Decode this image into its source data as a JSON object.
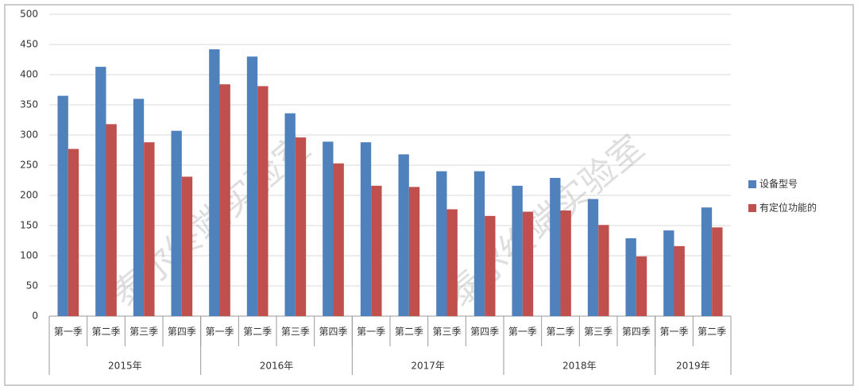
{
  "chart_data": {
    "type": "bar",
    "groups": [
      {
        "name": "2015年",
        "categories": [
          "第一季",
          "第二季",
          "第三季",
          "第四季"
        ]
      },
      {
        "name": "2016年",
        "categories": [
          "第一季",
          "第二季",
          "第三季",
          "第四季"
        ]
      },
      {
        "name": "2017年",
        "categories": [
          "第一季",
          "第二季",
          "第三季",
          "第四季"
        ]
      },
      {
        "name": "2018年",
        "categories": [
          "第一季",
          "第二季",
          "第三季",
          "第四季"
        ]
      },
      {
        "name": "2019年",
        "categories": [
          "第一季",
          "第二季"
        ]
      }
    ],
    "series": [
      {
        "name": "设备型号",
        "color": "#4f81bd",
        "values": [
          365,
          413,
          360,
          307,
          442,
          430,
          336,
          289,
          288,
          268,
          240,
          240,
          216,
          229,
          194,
          129,
          142,
          180
        ]
      },
      {
        "name": "有定位功能的",
        "color": "#c0504d",
        "values": [
          277,
          318,
          288,
          231,
          384,
          381,
          296,
          253,
          216,
          214,
          177,
          166,
          173,
          175,
          151,
          99,
          116,
          147
        ]
      }
    ],
    "ylim": [
      0,
      500
    ],
    "yticks": [
      0,
      50,
      100,
      150,
      200,
      250,
      300,
      350,
      400,
      450,
      500
    ],
    "grid": true,
    "legend": "right",
    "watermark": "泰尔终端实验室"
  }
}
